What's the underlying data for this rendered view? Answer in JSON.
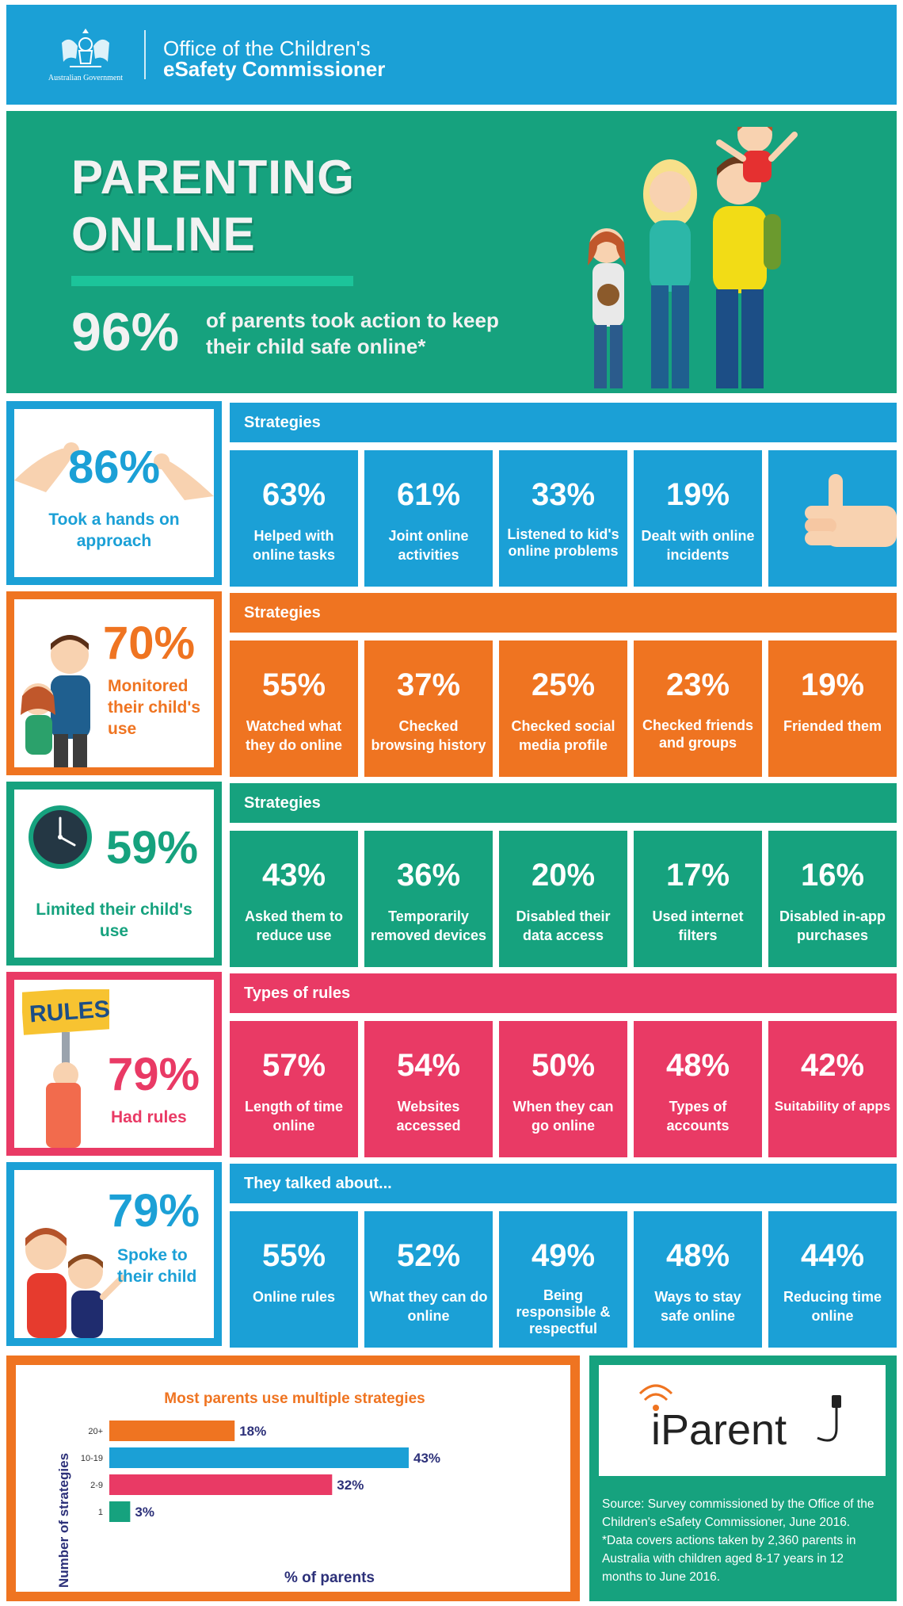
{
  "header": {
    "gov_label": "Australian Government",
    "org_line1": "Office of the Children's",
    "org_line2": "eSafety Commissioner"
  },
  "hero": {
    "title_line1": "PARENTING",
    "title_line2": "ONLINE",
    "percent": "96%",
    "text": "of parents took action to keep their child safe online*"
  },
  "sections": [
    {
      "percent": "86%",
      "label": "Took a hands on approach",
      "heading": "Strategies",
      "items": [
        {
          "pct": "63%",
          "label": "Helped with online tasks"
        },
        {
          "pct": "61%",
          "label": "Joint online activities"
        },
        {
          "pct": "33%",
          "label": "Listened to kid's online problems"
        },
        {
          "pct": "19%",
          "label": "Dealt with online incidents"
        }
      ]
    },
    {
      "percent": "70%",
      "label": "Monitored their child's use",
      "heading": "Strategies",
      "items": [
        {
          "pct": "55%",
          "label": "Watched what they do online"
        },
        {
          "pct": "37%",
          "label": "Checked browsing history"
        },
        {
          "pct": "25%",
          "label": "Checked social media profile"
        },
        {
          "pct": "23%",
          "label": "Checked friends and groups"
        },
        {
          "pct": "19%",
          "label": "Friended them"
        }
      ]
    },
    {
      "percent": "59%",
      "label": "Limited their child's use",
      "heading": "Strategies",
      "items": [
        {
          "pct": "43%",
          "label": "Asked them to reduce use"
        },
        {
          "pct": "36%",
          "label": "Temporarily removed devices"
        },
        {
          "pct": "20%",
          "label": "Disabled their data access"
        },
        {
          "pct": "17%",
          "label": "Used internet filters"
        },
        {
          "pct": "16%",
          "label": "Disabled in-app purchases"
        }
      ]
    },
    {
      "percent": "79%",
      "label": "Had rules",
      "sign": "RULES",
      "heading": "Types of rules",
      "items": [
        {
          "pct": "57%",
          "label": "Length of time online"
        },
        {
          "pct": "54%",
          "label": "Websites accessed"
        },
        {
          "pct": "50%",
          "label": "When they can go online"
        },
        {
          "pct": "48%",
          "label": "Types of accounts"
        },
        {
          "pct": "42%",
          "label": "Suitability of apps"
        }
      ]
    },
    {
      "percent": "79%",
      "label": "Spoke to their child",
      "heading": "They talked about...",
      "items": [
        {
          "pct": "55%",
          "label": "Online rules"
        },
        {
          "pct": "52%",
          "label": "What they can do online"
        },
        {
          "pct": "49%",
          "label": "Being responsible & respectful"
        },
        {
          "pct": "48%",
          "label": "Ways to stay safe online"
        },
        {
          "pct": "44%",
          "label": "Reducing time online"
        }
      ]
    }
  ],
  "chart_data": {
    "type": "bar",
    "orientation": "horizontal",
    "title": "Most parents use multiple strategies",
    "xlabel": "% of parents",
    "ylabel": "Number of strategies",
    "categories": [
      "20+",
      "10-19",
      "2-9",
      "1"
    ],
    "values": [
      18,
      43,
      32,
      3
    ],
    "value_labels": [
      "18%",
      "43%",
      "32%",
      "3%"
    ],
    "colors": [
      "#ef7421",
      "#1ba0d6",
      "#e93a65",
      "#16a27e"
    ],
    "xlim": [
      0,
      43
    ],
    "grid": false,
    "legend": "none"
  },
  "footer": {
    "logo_text": "iParent",
    "source_text": "Source: Survey commissioned by the Office of the Children's eSafety Commissioner, June 2016. *Data covers actions taken by 2,360 parents in Australia with children aged 8-17 years in 12 months to June 2016."
  },
  "colors": {
    "blue": "#1ba0d6",
    "orange": "#ef7421",
    "green": "#16a27e",
    "pink": "#e93a65",
    "navy": "#2c3079"
  }
}
